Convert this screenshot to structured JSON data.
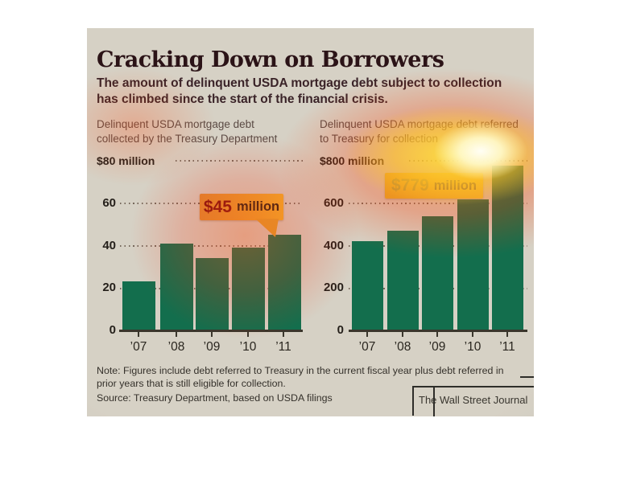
{
  "title": "Cracking Down on Borrowers",
  "subtitle": "The amount of delinquent USDA mortgage debt subject to collection has climbed since the start of the financial crisis.",
  "note": "Note: Figures include debt referred to Treasury in the current fiscal year plus debt referred in prior years that is still eligible for collection.",
  "source": "Source: Treasury Department, based on USDA filings",
  "credit": "The Wall Street Journal",
  "colors": {
    "bar_green": "#136e4d",
    "background": "#d3cec2",
    "callout_box_orange": "#e9a52f",
    "heat_core_white": "#fffff0",
    "heat_yellow": "#ffdf3c",
    "heat_red": "#ff4a00",
    "callout_value_red": "#7a1010"
  },
  "chart_data": [
    {
      "type": "bar",
      "heading": "Delinquent USDA mortgage debt collected by the Treasury Department",
      "unit_label": "$80 million",
      "categories": [
        "’07",
        "’08",
        "’09",
        "’10",
        "’11"
      ],
      "values": [
        23,
        41,
        34,
        39,
        45
      ],
      "ylim": [
        0,
        80
      ],
      "y_ticks": [
        "60",
        "40",
        "20",
        "0"
      ],
      "grid": "dotted-horizontal",
      "legend": "none",
      "callout": {
        "value": "$45",
        "suffix": "million"
      }
    },
    {
      "type": "bar",
      "heading": "Delinquent USDA mortgage debt referred to Treasury for collection",
      "unit_label": "$800 million",
      "categories": [
        "’07",
        "’08",
        "’09",
        "’10",
        "’11"
      ],
      "values": [
        420,
        470,
        540,
        620,
        779
      ],
      "ylim": [
        0,
        800
      ],
      "y_ticks": [
        "600",
        "400",
        "200",
        "0"
      ],
      "grid": "dotted-horizontal",
      "legend": "none",
      "callout": {
        "value": "$779",
        "suffix": "million"
      }
    }
  ]
}
